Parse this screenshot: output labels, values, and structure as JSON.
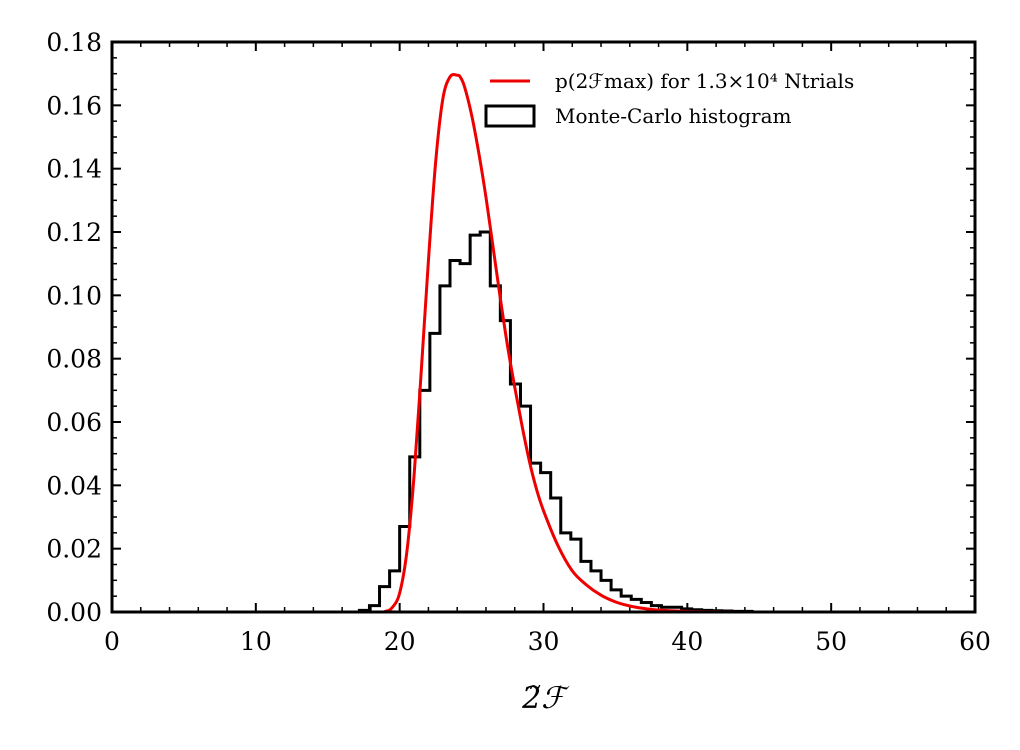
{
  "chart_data": {
    "type": "line",
    "xlabel": "2̃ℱ",
    "ylabel": "",
    "xlim": [
      0,
      60
    ],
    "ylim": [
      0,
      0.18
    ],
    "x_ticks": [
      0,
      10,
      20,
      30,
      40,
      50,
      60
    ],
    "x_tick_labels": [
      "0",
      "10",
      "20",
      "30",
      "40",
      "50",
      "60"
    ],
    "y_ticks": [
      0,
      0.02,
      0.04,
      0.06,
      0.08,
      0.1,
      0.12,
      0.14,
      0.16,
      0.18
    ],
    "y_tick_labels": [
      "0.00",
      "0.02",
      "0.04",
      "0.06",
      "0.08",
      "0.10",
      "0.12",
      "0.14",
      "0.16",
      "0.18"
    ],
    "grid": false,
    "legend_position": "top-right",
    "colors": {
      "curve": "#ee0000",
      "histogram": "#000000"
    },
    "series": [
      {
        "name": "p(2ℱmax) for 1.3×10⁴ Ntrials",
        "type": "line",
        "color": "#ee0000",
        "x": [
          0,
          18,
          19,
          19.5,
          20,
          20.5,
          21,
          21.5,
          22,
          22.5,
          23,
          23.5,
          24,
          24.2,
          24.5,
          25,
          25.5,
          26,
          26.5,
          27,
          27.5,
          28,
          28.5,
          29,
          29.5,
          30,
          31,
          32,
          33,
          34,
          35,
          36,
          37,
          38,
          40,
          45,
          60
        ],
        "y": [
          0,
          0,
          0.0002,
          0.0015,
          0.006,
          0.019,
          0.043,
          0.076,
          0.111,
          0.142,
          0.162,
          0.169,
          0.1695,
          0.169,
          0.166,
          0.157,
          0.145,
          0.131,
          0.115,
          0.099,
          0.084,
          0.071,
          0.059,
          0.048,
          0.039,
          0.032,
          0.021,
          0.013,
          0.0085,
          0.0053,
          0.0032,
          0.0019,
          0.0011,
          0.0006,
          0.0002,
          0,
          0
        ]
      },
      {
        "name": "Monte-Carlo histogram",
        "type": "histogram",
        "color": "#000000",
        "bin_edges": [
          0,
          17.2,
          17.9,
          18.6,
          19.3,
          20.0,
          20.7,
          21.4,
          22.1,
          22.8,
          23.5,
          24.2,
          24.9,
          25.6,
          26.3,
          27.0,
          27.7,
          28.4,
          29.1,
          29.8,
          30.5,
          31.2,
          31.9,
          32.6,
          33.3,
          34.0,
          34.7,
          35.4,
          36.1,
          36.8,
          37.5,
          38.2,
          38.9,
          39.6,
          40.3,
          41.0,
          41.7,
          42.4,
          43.1,
          44.5,
          60
        ],
        "counts": [
          0,
          0.0005,
          0.002,
          0.008,
          0.013,
          0.027,
          0.049,
          0.07,
          0.088,
          0.103,
          0.111,
          0.11,
          0.119,
          0.12,
          0.103,
          0.092,
          0.072,
          0.065,
          0.047,
          0.044,
          0.036,
          0.025,
          0.023,
          0.016,
          0.013,
          0.01,
          0.007,
          0.005,
          0.004,
          0.003,
          0.002,
          0.0015,
          0.0015,
          0.001,
          0.0007,
          0.0005,
          0.0004,
          0.0003,
          0.0002,
          0
        ]
      }
    ]
  }
}
